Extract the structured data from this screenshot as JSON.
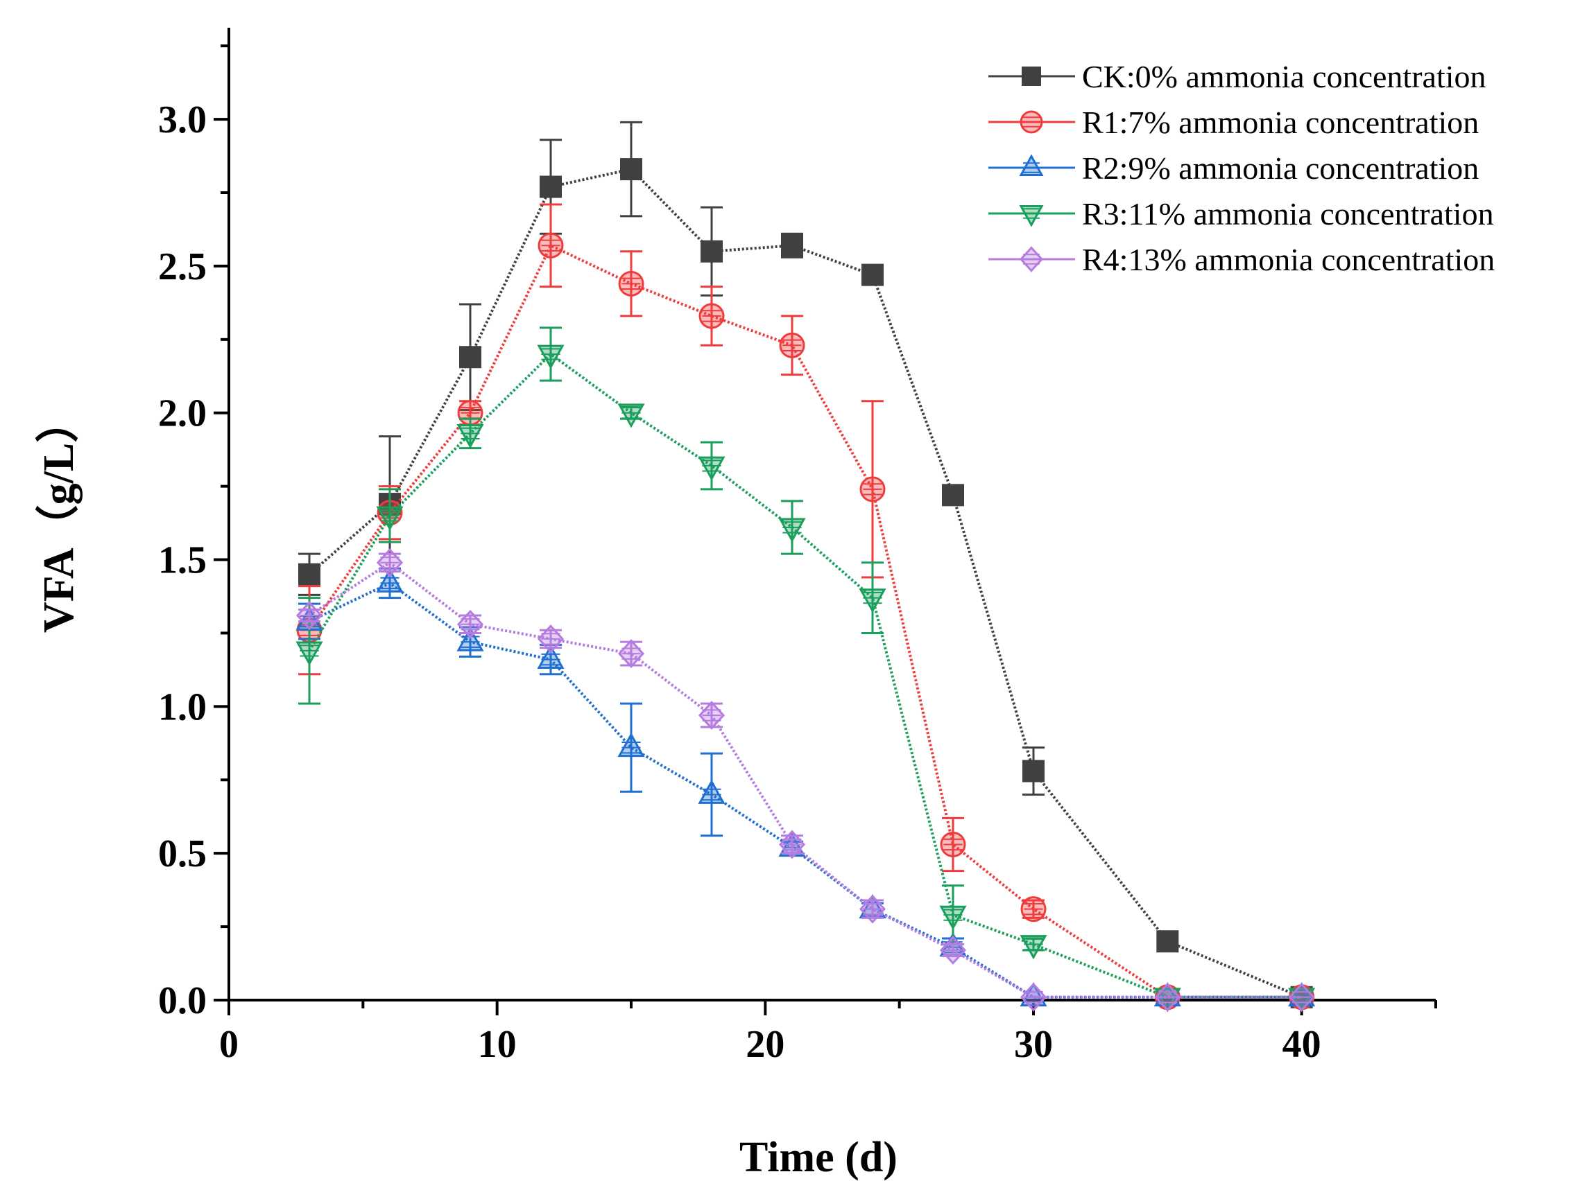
{
  "chart_data": {
    "type": "line",
    "title": "",
    "xlabel": "Time (d)",
    "ylabel": "VFA（g/L）",
    "xlim": [
      0,
      45
    ],
    "ylim": [
      0,
      3.3
    ],
    "xticks": [
      0,
      10,
      20,
      30,
      40
    ],
    "xtick_labels": [
      "0",
      "10",
      "20",
      "30",
      "40"
    ],
    "yticks": [
      0,
      0.5,
      1.0,
      1.5,
      2.0,
      2.5,
      3.0
    ],
    "ytick_labels": [
      "0.0",
      "0.5",
      "1.0",
      "1.5",
      "2.0",
      "2.5",
      "3.0"
    ],
    "grid": false,
    "legend_position": "top-right",
    "series": [
      {
        "name": "CK:0% ammonia concentration",
        "color": "#404040",
        "marker": "square",
        "x": [
          3,
          6,
          9,
          12,
          15,
          18,
          21,
          24,
          27,
          30,
          35,
          40
        ],
        "y": [
          1.45,
          1.69,
          2.19,
          2.77,
          2.83,
          2.55,
          2.57,
          2.47,
          1.72,
          0.78,
          0.2,
          0.01
        ],
        "err": [
          0.07,
          0.23,
          0.18,
          0.16,
          0.16,
          0.15,
          0.04,
          0.02,
          0.02,
          0.08,
          0.01,
          0.01
        ]
      },
      {
        "name": "R1:7% ammonia concentration",
        "color": "#ef3b3b",
        "marker": "circle",
        "x": [
          3,
          6,
          9,
          12,
          15,
          18,
          21,
          24,
          27,
          30,
          35,
          40
        ],
        "y": [
          1.26,
          1.66,
          2.0,
          2.57,
          2.44,
          2.33,
          2.23,
          1.74,
          0.53,
          0.31,
          0.01,
          0.01
        ],
        "err": [
          0.15,
          0.09,
          0.04,
          0.14,
          0.11,
          0.1,
          0.1,
          0.3,
          0.09,
          0.03,
          0.01,
          0.01
        ]
      },
      {
        "name": "R2:9% ammonia concentration",
        "color": "#1f6fd0",
        "marker": "triangle-up",
        "x": [
          3,
          6,
          9,
          12,
          15,
          18,
          21,
          24,
          27,
          30,
          35,
          40
        ],
        "y": [
          1.29,
          1.42,
          1.22,
          1.16,
          0.86,
          0.7,
          0.52,
          0.31,
          0.18,
          0.01,
          0.01,
          0.01
        ],
        "err": [
          0.06,
          0.05,
          0.05,
          0.05,
          0.15,
          0.14,
          0.02,
          0.02,
          0.03,
          0.01,
          0.01,
          0.01
        ]
      },
      {
        "name": "R3:11% ammonia concentration",
        "color": "#1a9e5c",
        "marker": "triangle-down",
        "x": [
          3,
          6,
          9,
          12,
          15,
          18,
          21,
          24,
          27,
          30,
          35,
          40
        ],
        "y": [
          1.19,
          1.65,
          1.93,
          2.2,
          2.0,
          1.82,
          1.61,
          1.37,
          0.29,
          0.19,
          0.01,
          0.01
        ],
        "err": [
          0.18,
          0.09,
          0.05,
          0.09,
          0.02,
          0.08,
          0.09,
          0.12,
          0.1,
          0.02,
          0.01,
          0.01
        ]
      },
      {
        "name": "R4:13% ammonia concentration",
        "color": "#b57be0",
        "marker": "diamond",
        "x": [
          3,
          6,
          9,
          12,
          15,
          18,
          21,
          24,
          27,
          30,
          35,
          40
        ],
        "y": [
          1.31,
          1.49,
          1.28,
          1.23,
          1.18,
          0.97,
          0.53,
          0.31,
          0.17,
          0.01,
          0.01,
          0.01
        ],
        "err": [
          0.02,
          0.03,
          0.03,
          0.03,
          0.04,
          0.04,
          0.03,
          0.03,
          0.02,
          0.01,
          0.01,
          0.01
        ]
      }
    ]
  }
}
